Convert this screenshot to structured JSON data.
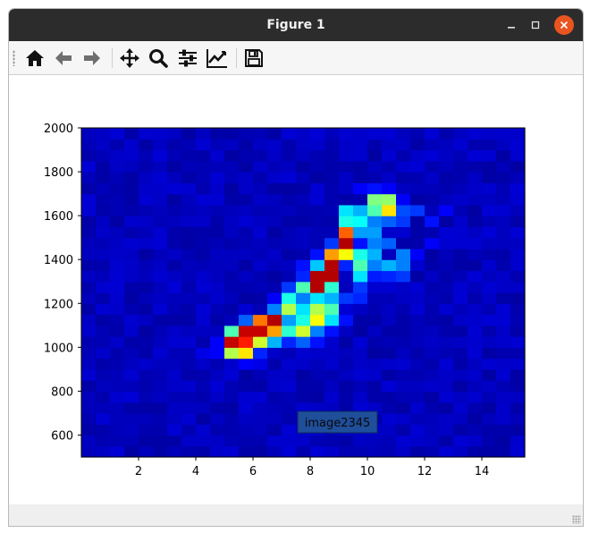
{
  "window": {
    "title": "Figure 1",
    "minimize_icon": "minimize-icon",
    "maximize_icon": "maximize-icon",
    "close_icon": "close-icon",
    "close_color": "#e95420"
  },
  "toolbar": {
    "tools": [
      {
        "name": "home",
        "icon": "home-icon"
      },
      {
        "name": "back",
        "icon": "arrow-left-icon"
      },
      {
        "name": "forward",
        "icon": "arrow-right-icon"
      },
      {
        "name": "pan",
        "icon": "move-icon"
      },
      {
        "name": "zoom",
        "icon": "magnifier-icon"
      },
      {
        "name": "subplots",
        "icon": "sliders-icon"
      },
      {
        "name": "edit-axes",
        "icon": "line-chart-icon"
      },
      {
        "name": "save",
        "icon": "floppy-disk-icon"
      }
    ]
  },
  "chart_data": {
    "type": "heatmap",
    "colormap": "jet",
    "title": "",
    "xlabel": "",
    "ylabel": "",
    "xlim": [
      0,
      15.5
    ],
    "ylim": [
      500,
      2000
    ],
    "xticks": [
      "2",
      "4",
      "6",
      "8",
      "10",
      "12",
      "14"
    ],
    "yticks": [
      "600",
      "800",
      "1000",
      "1200",
      "1400",
      "1600",
      "1800",
      "2000"
    ],
    "grid": false,
    "cell_width": 0.5,
    "cell_height": 50,
    "background_level": 0.06,
    "cells": [
      [
        5.0,
        1000,
        0.93
      ],
      [
        5.5,
        1000,
        0.85
      ],
      [
        5.5,
        1050,
        0.93
      ],
      [
        6.0,
        1050,
        0.93
      ],
      [
        6.0,
        1100,
        0.76
      ],
      [
        6.5,
        1100,
        0.95
      ],
      [
        6.5,
        1050,
        0.72
      ],
      [
        6.0,
        1000,
        0.58
      ],
      [
        5.0,
        950,
        0.55
      ],
      [
        5.5,
        950,
        0.65
      ],
      [
        5.0,
        1050,
        0.45
      ],
      [
        5.5,
        1100,
        0.22
      ],
      [
        6.5,
        1000,
        0.3
      ],
      [
        7.0,
        1050,
        0.42
      ],
      [
        7.0,
        1100,
        0.28
      ],
      [
        6.5,
        1150,
        0.25
      ],
      [
        7.0,
        1150,
        0.55
      ],
      [
        7.0,
        1200,
        0.4
      ],
      [
        7.5,
        1000,
        0.22
      ],
      [
        7.5,
        1050,
        0.58
      ],
      [
        7.5,
        1100,
        0.4
      ],
      [
        7.5,
        1150,
        0.35
      ],
      [
        7.5,
        1200,
        0.25
      ],
      [
        7.5,
        1250,
        0.45
      ],
      [
        7.0,
        1250,
        0.18
      ],
      [
        8.0,
        1050,
        0.25
      ],
      [
        8.0,
        1100,
        0.62
      ],
      [
        8.0,
        1150,
        0.55
      ],
      [
        8.0,
        1200,
        0.35
      ],
      [
        8.0,
        1250,
        0.95
      ],
      [
        8.0,
        1300,
        0.95
      ],
      [
        8.0,
        1350,
        0.32
      ],
      [
        8.5,
        1100,
        0.35
      ],
      [
        8.5,
        1150,
        0.45
      ],
      [
        8.5,
        1200,
        0.3
      ],
      [
        8.5,
        1250,
        0.42
      ],
      [
        8.5,
        1300,
        0.95
      ],
      [
        8.5,
        1350,
        0.95
      ],
      [
        8.5,
        1400,
        0.72
      ],
      [
        8.5,
        1450,
        0.18
      ],
      [
        9.0,
        1400,
        0.62
      ],
      [
        9.0,
        1450,
        0.95
      ],
      [
        9.0,
        1500,
        0.78
      ],
      [
        9.0,
        1550,
        0.4
      ],
      [
        9.5,
        1300,
        0.35
      ],
      [
        9.5,
        1350,
        0.45
      ],
      [
        9.5,
        1400,
        0.4
      ],
      [
        9.5,
        1500,
        0.28
      ],
      [
        9.5,
        1550,
        0.38
      ],
      [
        9.5,
        1600,
        0.3
      ],
      [
        10.0,
        1350,
        0.25
      ],
      [
        10.0,
        1400,
        0.3
      ],
      [
        10.0,
        1450,
        0.25
      ],
      [
        10.0,
        1500,
        0.28
      ],
      [
        10.0,
        1550,
        0.25
      ],
      [
        10.0,
        1600,
        0.45
      ],
      [
        10.0,
        1650,
        0.5
      ],
      [
        10.5,
        1350,
        0.3
      ],
      [
        10.5,
        1450,
        0.22
      ],
      [
        10.5,
        1550,
        0.22
      ],
      [
        10.5,
        1600,
        0.65
      ],
      [
        10.5,
        1650,
        0.52
      ],
      [
        11.0,
        1400,
        0.25
      ],
      [
        11.0,
        1550,
        0.18
      ],
      [
        11.0,
        1600,
        0.2
      ],
      [
        9.0,
        1600,
        0.35
      ],
      [
        11.5,
        1600,
        0.18
      ],
      [
        9.0,
        1200,
        0.18
      ],
      [
        9.5,
        1200,
        0.16
      ],
      [
        9.5,
        1250,
        0.18
      ],
      [
        11.0,
        1350,
        0.25
      ],
      [
        11.0,
        1300,
        0.18
      ],
      [
        10.5,
        1300,
        0.16
      ],
      [
        12.0,
        1550,
        0.14
      ],
      [
        12.5,
        1600,
        0.12
      ],
      [
        8.0,
        1000,
        0.14
      ],
      [
        7.0,
        1000,
        0.16
      ],
      [
        6.0,
        950,
        0.16
      ],
      [
        4.5,
        1000,
        0.12
      ],
      [
        4.5,
        950,
        0.12
      ],
      [
        8.5,
        1050,
        0.14
      ],
      [
        9.0,
        1100,
        0.14
      ],
      [
        6.5,
        1200,
        0.12
      ],
      [
        7.5,
        1300,
        0.16
      ],
      [
        7.5,
        1350,
        0.14
      ],
      [
        8.0,
        1400,
        0.14
      ],
      [
        11.5,
        1400,
        0.12
      ],
      [
        12.0,
        1450,
        0.12
      ],
      [
        9.0,
        1350,
        0.16
      ],
      [
        9.5,
        1450,
        0.14
      ],
      [
        10.0,
        1300,
        0.15
      ],
      [
        4.0,
        950,
        0.1
      ],
      [
        5.5,
        900,
        0.12
      ],
      [
        6.0,
        900,
        0.1
      ],
      [
        10.5,
        1700,
        0.12
      ],
      [
        9.5,
        1700,
        0.12
      ],
      [
        10.0,
        1700,
        0.14
      ],
      [
        11.0,
        1650,
        0.12
      ]
    ]
  },
  "annotation": {
    "label": "image2345",
    "box_color": "#1f4e9a"
  }
}
